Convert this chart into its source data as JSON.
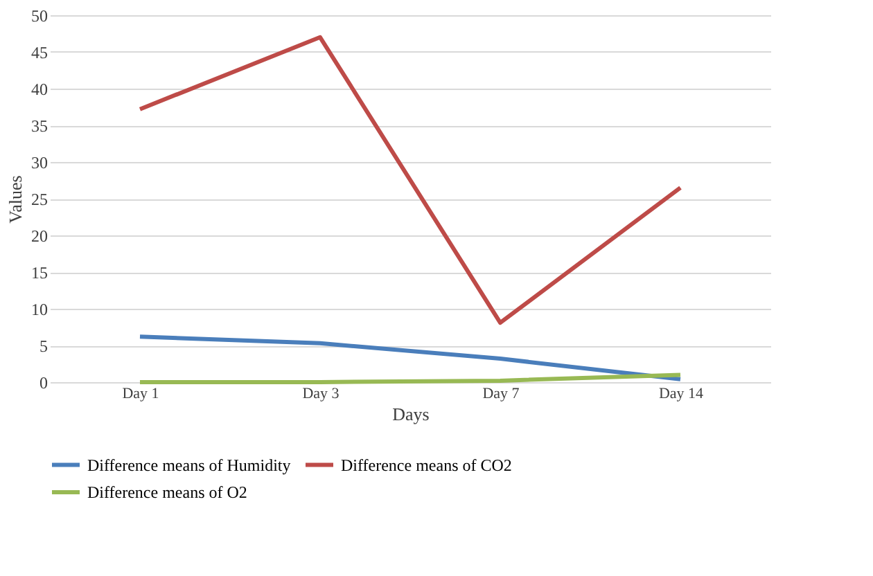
{
  "chart_data": {
    "type": "line",
    "xlabel": "Days",
    "ylabel": "Values",
    "categories": [
      "Day 1",
      "Day 3",
      "Day 7",
      "Day 14"
    ],
    "series": [
      {
        "name": "Difference means of Humidity",
        "color": "#4a7ebb",
        "values": [
          6.2,
          5.3,
          3.2,
          0.4
        ]
      },
      {
        "name": "Difference means of CO2",
        "color": "#be4b48",
        "values": [
          37.2,
          47.0,
          8.1,
          26.5
        ]
      },
      {
        "name": "Difference means of O2",
        "color": "#98b954",
        "values": [
          0,
          0,
          0.2,
          1.0
        ]
      }
    ],
    "ylim": [
      0,
      50
    ],
    "yticks": [
      0,
      5,
      10,
      15,
      20,
      25,
      30,
      35,
      40,
      45,
      50
    ],
    "grid": "y",
    "legend": "bottom",
    "marker": "none",
    "line_style": "solid"
  }
}
